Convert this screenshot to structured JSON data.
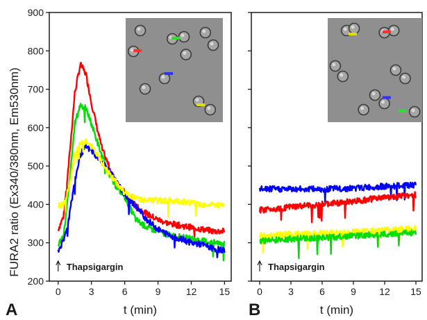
{
  "ylabel": "FURA2 ratio (Ex340/380nm, Em530nm)",
  "chart_data": [
    {
      "type": "line",
      "panel": "A",
      "xlabel": "t (min)",
      "ylabel": "FURA2 ratio (Ex340/380nm, Em530nm)",
      "xlim": [
        -0.8,
        15.6
      ],
      "ylim": [
        200,
        900
      ],
      "xticks": [
        0,
        3,
        6,
        9,
        12,
        15
      ],
      "yticks": [
        200,
        300,
        400,
        500,
        600,
        700,
        800,
        900
      ],
      "annotation": "Thapsigargin",
      "annotation_x": 0,
      "has_inset_micrograph": true,
      "series": [
        {
          "color": "#ff0000",
          "x": [
            0,
            0.5,
            1,
            1.5,
            2,
            2.5,
            3,
            3.5,
            4,
            5,
            6,
            7,
            8,
            9,
            10,
            11,
            12,
            13,
            14,
            15
          ],
          "y": [
            335,
            370,
            520,
            690,
            765,
            740,
            665,
            600,
            540,
            470,
            430,
            395,
            375,
            360,
            350,
            345,
            340,
            335,
            330,
            330
          ]
        },
        {
          "color": "#00dd00",
          "x": [
            0,
            0.5,
            1,
            1.5,
            2,
            2.5,
            3,
            3.5,
            4,
            5,
            6,
            7,
            8,
            9,
            10,
            11,
            12,
            13,
            14,
            15
          ],
          "y": [
            295,
            320,
            450,
            610,
            660,
            650,
            610,
            565,
            520,
            455,
            420,
            360,
            340,
            330,
            320,
            315,
            310,
            305,
            300,
            300
          ]
        },
        {
          "color": "#0000ff",
          "x": [
            0,
            0.5,
            1,
            1.5,
            2,
            2.5,
            3,
            3.5,
            4,
            5,
            6,
            7,
            8,
            9,
            10,
            11,
            12,
            13,
            14,
            15
          ],
          "y": [
            280,
            305,
            370,
            460,
            530,
            550,
            540,
            525,
            510,
            470,
            425,
            395,
            360,
            335,
            320,
            310,
            300,
            295,
            285,
            280
          ]
        },
        {
          "color": "#ffff00",
          "x": [
            0,
            0.5,
            1,
            1.5,
            2,
            2.5,
            3,
            3.5,
            4,
            5,
            6,
            7,
            8,
            9,
            10,
            11,
            12,
            13,
            14,
            15
          ],
          "y": [
            395,
            400,
            450,
            530,
            560,
            565,
            550,
            530,
            505,
            465,
            430,
            415,
            410,
            410,
            410,
            408,
            405,
            400,
            400,
            395
          ]
        }
      ]
    },
    {
      "type": "line",
      "panel": "B",
      "xlabel": "t (min)",
      "xlim": [
        -0.8,
        15.6
      ],
      "ylim": [
        200,
        900
      ],
      "xticks": [
        0,
        3,
        6,
        9,
        12,
        15
      ],
      "annotation": "Thapsigargin",
      "annotation_x": 0,
      "has_inset_micrograph": true,
      "series": [
        {
          "color": "#0000ff",
          "x": [
            0,
            3,
            6,
            9,
            12,
            15
          ],
          "y": [
            440,
            440,
            440,
            442,
            447,
            450
          ]
        },
        {
          "color": "#ff0000",
          "x": [
            0,
            3,
            6,
            9,
            12,
            15
          ],
          "y": [
            385,
            393,
            400,
            408,
            418,
            425
          ]
        },
        {
          "color": "#ffff00",
          "x": [
            0,
            3,
            6,
            9,
            12,
            15
          ],
          "y": [
            318,
            322,
            325,
            328,
            333,
            337
          ]
        },
        {
          "color": "#00dd00",
          "x": [
            0,
            3,
            6,
            9,
            12,
            15
          ],
          "y": [
            305,
            310,
            313,
            318,
            322,
            327
          ]
        }
      ]
    }
  ]
}
